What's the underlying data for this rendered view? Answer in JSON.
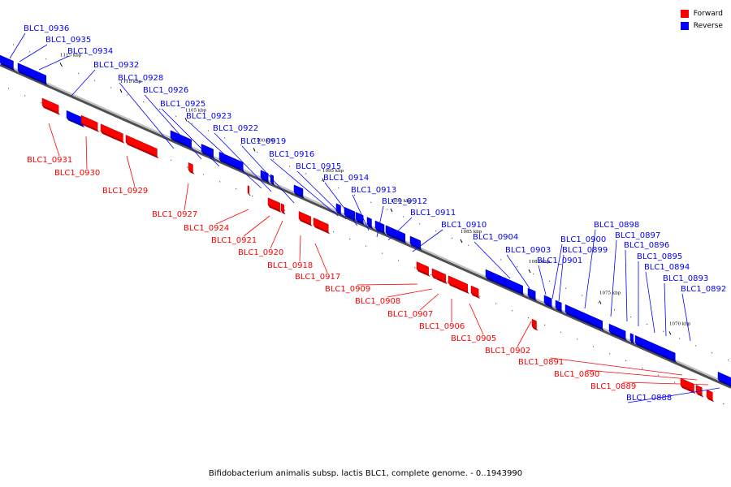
{
  "legend": [
    {
      "label": "Forward",
      "color": "#ff0000"
    },
    {
      "label": "Reverse",
      "color": "#0000ff"
    }
  ],
  "caption": "Bifidobacterium animalis subsp. lactis BLC1, complete genome. - 0..1943990",
  "ticks": [
    "1115 kbp",
    "1110 kbp",
    "1105 kbp",
    "1100 kbp",
    "1095 kbp",
    "1090 kbp",
    "1085 kbp",
    "1080 kbp",
    "1075 kbp",
    "1070 kbp"
  ],
  "genes": {
    "reverse": [
      "BLC1_0936",
      "BLC1_0935",
      "BLC1_0934",
      "BLC1_0932",
      "BLC1_0928",
      "BLC1_0926",
      "BLC1_0925",
      "BLC1_0923",
      "BLC1_0922",
      "BLC1_0919",
      "BLC1_0916",
      "BLC1_0915",
      "BLC1_0914",
      "BLC1_0913",
      "BLC1_0912",
      "BLC1_0911",
      "BLC1_0910",
      "BLC1_0904",
      "BLC1_0903",
      "BLC1_0901",
      "BLC1_0900",
      "BLC1_0899",
      "BLC1_0898",
      "BLC1_0897",
      "BLC1_0896",
      "BLC1_0895",
      "BLC1_0894",
      "BLC1_0893",
      "BLC1_0892",
      "BLC1_0888"
    ],
    "forward": [
      "BLC1_0931",
      "BLC1_0930",
      "BLC1_0929",
      "BLC1_0927",
      "BLC1_0924",
      "BLC1_0921",
      "BLC1_0920",
      "BLC1_0918",
      "BLC1_0917",
      "BLC1_0909",
      "BLC1_0908",
      "BLC1_0907",
      "BLC1_0906",
      "BLC1_0905",
      "BLC1_0902",
      "BLC1_0891",
      "BLC1_0890",
      "BLC1_0889"
    ]
  },
  "colors": {
    "forward": "#ff0000",
    "reverse": "#0000ff",
    "backbone": "#808080"
  }
}
